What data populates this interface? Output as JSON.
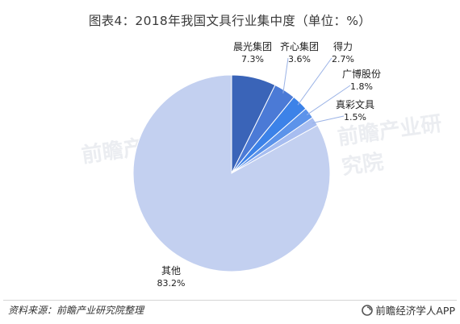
{
  "title": "图表4：2018年我国文具行业集中度（单位：%）",
  "source": "资料来源：前瞻产业研究院整理",
  "brand": "前瞻经济学人APP",
  "watermark": "前瞻产业研究院",
  "colors": {
    "others": "#c3d0f0",
    "chenguang": "#3a64b8",
    "qixin": "#4b7ad6",
    "deli": "#3c82e8",
    "guangbo": "#5c93ea",
    "zhencai": "#a7bdf0"
  },
  "chart_data": {
    "type": "pie",
    "title": "图表4：2018年我国文具行业集中度（单位：%）",
    "unit": "%",
    "slices": [
      {
        "name": "晨光集团",
        "value": 7.3,
        "label": "7.3%"
      },
      {
        "name": "齐心集团",
        "value": 3.6,
        "label": "3.6%"
      },
      {
        "name": "得力",
        "value": 2.7,
        "label": "2.7%"
      },
      {
        "name": "广博股份",
        "value": 1.8,
        "label": "1.8%"
      },
      {
        "name": "真彩文具",
        "value": 1.5,
        "label": "1.5%"
      },
      {
        "name": "其他",
        "value": 83.2,
        "label": "83.2%"
      }
    ]
  }
}
